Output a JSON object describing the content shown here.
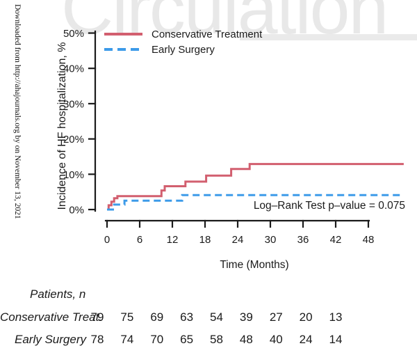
{
  "watermark": {
    "text": "Circulation",
    "color": "#e8e8e8"
  },
  "sidebar": {
    "text": "Downloaded from http://ahajournals.org by on November 13, 2021"
  },
  "chart_data": {
    "type": "line",
    "subtype": "step",
    "title": "",
    "ylabel": "Incidence of HF hospitalization, %",
    "xlabel": "Time (Months)",
    "x_ticks": [
      0,
      6,
      12,
      18,
      24,
      30,
      36,
      42,
      48
    ],
    "y_ticks": [
      "0%",
      "10%",
      "20%",
      "30%",
      "40%",
      "50%"
    ],
    "xlim": [
      0,
      54.5
    ],
    "ylim": [
      0,
      50
    ],
    "grid": "off",
    "legend_position": "top-left",
    "annotation": "Log–Rank Test p–value = 0.075",
    "series": [
      {
        "name": "Conservative Treatment",
        "color": "#d25f6f",
        "style": "solid",
        "points": [
          [
            0,
            0
          ],
          [
            0.3,
            1.2
          ],
          [
            0.8,
            2.2
          ],
          [
            1.3,
            3.2
          ],
          [
            1.9,
            3.8
          ],
          [
            10,
            5.4
          ],
          [
            10.6,
            6.6
          ],
          [
            14.4,
            7.9
          ],
          [
            18.2,
            9.6
          ],
          [
            22.8,
            11.5
          ],
          [
            26.2,
            12.9
          ],
          [
            54.5,
            12.9
          ]
        ]
      },
      {
        "name": "Early Surgery",
        "color": "#3d9be9",
        "style": "dashed",
        "points": [
          [
            0,
            0
          ],
          [
            1.3,
            1.4
          ],
          [
            3.2,
            2.5
          ],
          [
            13.8,
            4.1
          ],
          [
            54.5,
            4.1
          ]
        ]
      }
    ]
  },
  "risk_table": {
    "header": "Patients, n",
    "rows": [
      {
        "label": "Conservative Treat.",
        "values": [
          "79",
          "75",
          "69",
          "63",
          "54",
          "39",
          "27",
          "20",
          "13"
        ]
      },
      {
        "label": "Early Surgery",
        "values": [
          "78",
          "74",
          "70",
          "65",
          "58",
          "48",
          "40",
          "24",
          "14"
        ]
      }
    ]
  }
}
